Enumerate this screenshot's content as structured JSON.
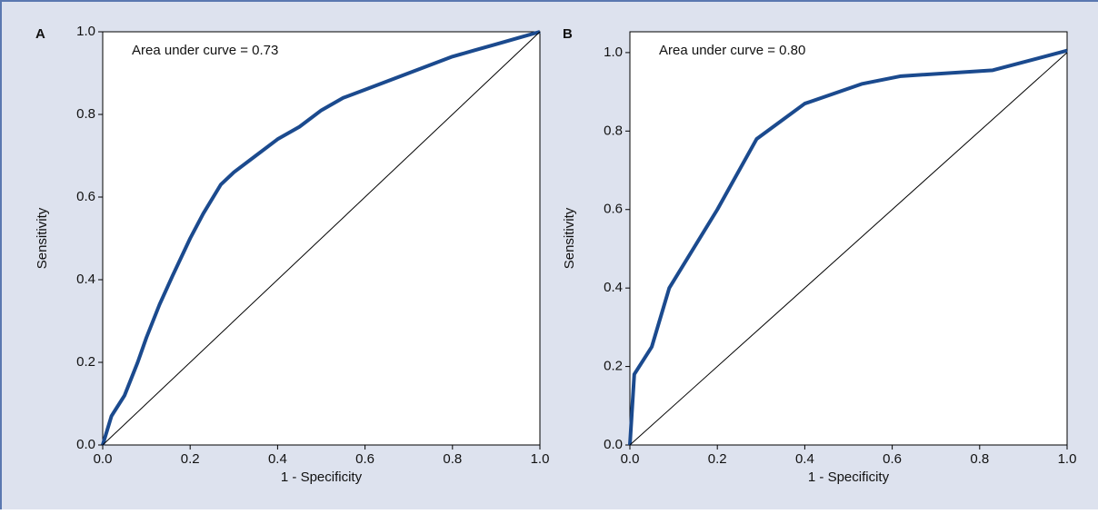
{
  "chart_data": [
    {
      "type": "line",
      "panel_label": "A",
      "annotation": "Area under curve = 0.73",
      "xlabel": "1 - Specificity",
      "ylabel": "Sensitivity",
      "xlim": [
        0,
        1
      ],
      "ylim": [
        0,
        1
      ],
      "xticks": [
        {
          "value": 0,
          "label": "0.0"
        },
        0.2,
        0.4,
        0.6,
        0.8,
        {
          "value": 1,
          "label": "1.0"
        }
      ],
      "yticks": [
        {
          "value": 0,
          "label": "0.0"
        },
        0.2,
        0.4,
        0.6,
        0.8,
        {
          "value": 1,
          "label": "1.0"
        }
      ],
      "series": [
        {
          "color": "#1b4a8e",
          "x": [
            0,
            0.02,
            0.05,
            0.08,
            0.1,
            0.13,
            0.16,
            0.2,
            0.23,
            0.27,
            0.3,
            0.35,
            0.4,
            0.45,
            0.5,
            0.55,
            0.6,
            0.65,
            0.7,
            0.75,
            0.8,
            0.85,
            0.9,
            0.95,
            1
          ],
          "values": [
            0,
            0.07,
            0.12,
            0.2,
            0.26,
            0.34,
            0.41,
            0.5,
            0.56,
            0.63,
            0.66,
            0.7,
            0.74,
            0.77,
            0.81,
            0.84,
            0.86,
            0.88,
            0.9,
            0.92,
            0.94,
            0.955,
            0.97,
            0.985,
            1
          ]
        },
        {
          "color": "#000000",
          "x": [
            0,
            1
          ],
          "values": [
            0,
            1
          ]
        }
      ]
    },
    {
      "type": "line",
      "panel_label": "B",
      "annotation": "Area under curve = 0.80",
      "xlabel": "1 - Specificity",
      "ylabel": "Sensitivity",
      "xlim": [
        0,
        1
      ],
      "ylim": [
        0,
        1.053
      ],
      "xticks": [
        {
          "value": 0,
          "label": "0.0"
        },
        0.2,
        0.4,
        0.6,
        0.8,
        {
          "value": 1,
          "label": "1.0"
        }
      ],
      "yticks": [
        {
          "value": 0,
          "label": "0.0"
        },
        0.2,
        0.4,
        0.6,
        0.8,
        {
          "value": 1,
          "label": "1.0"
        }
      ],
      "series": [
        {
          "color": "#1b4a8e",
          "x": [
            0,
            0.01,
            0.05,
            0.09,
            0.2,
            0.29,
            0.4,
            0.53,
            0.62,
            0.83,
            1
          ],
          "values": [
            0,
            0.18,
            0.25,
            0.4,
            0.6,
            0.78,
            0.87,
            0.92,
            0.94,
            0.955,
            1.005
          ]
        },
        {
          "color": "#000000",
          "x": [
            0,
            1
          ],
          "values": [
            0,
            1
          ]
        }
      ]
    }
  ]
}
